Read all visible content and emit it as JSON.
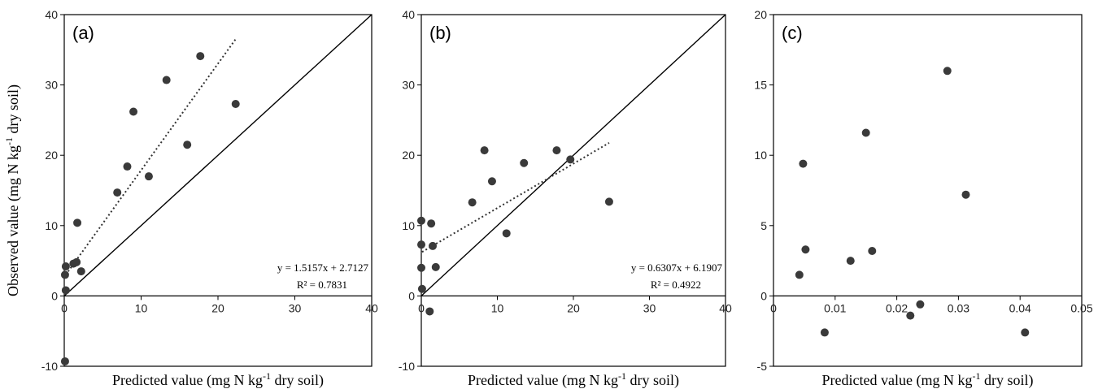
{
  "chart_data": [
    {
      "type": "scatter",
      "panel_label": "(a)",
      "xlim": [
        0,
        40
      ],
      "ylim": [
        -10,
        40
      ],
      "xticks": [
        0,
        10,
        20,
        30,
        40
      ],
      "yticks": [
        -10,
        0,
        10,
        20,
        30,
        40
      ],
      "xlabel": "Predicted value (mg N kg-1 dry soil)",
      "ylabel": "Observed value (mg N kg-1 dry soil)",
      "one_to_one_line": true,
      "trendline": {
        "slope": 1.5157,
        "intercept": 2.7127,
        "x_range": [
          0.5,
          22.3
        ]
      },
      "equation": "y = 1.5157x + 2.7127",
      "r2": "R² = 0.7831",
      "points": [
        {
          "x": 0.1,
          "y": -9.3
        },
        {
          "x": 0.2,
          "y": 0.8
        },
        {
          "x": 0.1,
          "y": 3.0
        },
        {
          "x": 0.2,
          "y": 4.2
        },
        {
          "x": 1.2,
          "y": 4.6
        },
        {
          "x": 1.6,
          "y": 4.8
        },
        {
          "x": 2.2,
          "y": 3.5
        },
        {
          "x": 1.7,
          "y": 10.4
        },
        {
          "x": 6.9,
          "y": 14.7
        },
        {
          "x": 8.2,
          "y": 18.4
        },
        {
          "x": 9.0,
          "y": 26.2
        },
        {
          "x": 11.0,
          "y": 17.0
        },
        {
          "x": 13.3,
          "y": 30.7
        },
        {
          "x": 16.0,
          "y": 21.5
        },
        {
          "x": 17.7,
          "y": 34.1
        },
        {
          "x": 22.3,
          "y": 27.3
        }
      ]
    },
    {
      "type": "scatter",
      "panel_label": "(b)",
      "xlim": [
        0,
        40
      ],
      "ylim": [
        -10,
        40
      ],
      "xticks": [
        0,
        10,
        20,
        30,
        40
      ],
      "yticks": [
        -10,
        0,
        10,
        20,
        30,
        40
      ],
      "xlabel": "Predicted value (mg N kg-1 dry soil)",
      "ylabel": "",
      "one_to_one_line": true,
      "trendline": {
        "slope": 0.6307,
        "intercept": 6.1907,
        "x_range": [
          0.1,
          24.7
        ]
      },
      "equation": "y = 0.6307x + 6.1907",
      "r2": "R² = 0.4922",
      "points": [
        {
          "x": 0.0,
          "y": 10.7
        },
        {
          "x": 0.0,
          "y": 7.3
        },
        {
          "x": 0.0,
          "y": 4.0
        },
        {
          "x": 0.1,
          "y": 1.0
        },
        {
          "x": 1.3,
          "y": 10.3
        },
        {
          "x": 1.5,
          "y": 7.1
        },
        {
          "x": 1.9,
          "y": 4.1
        },
        {
          "x": 1.1,
          "y": -2.2
        },
        {
          "x": 6.7,
          "y": 13.3
        },
        {
          "x": 8.3,
          "y": 20.7
        },
        {
          "x": 9.3,
          "y": 16.3
        },
        {
          "x": 11.2,
          "y": 8.9
        },
        {
          "x": 13.5,
          "y": 18.9
        },
        {
          "x": 17.8,
          "y": 20.7
        },
        {
          "x": 19.6,
          "y": 19.4
        },
        {
          "x": 24.7,
          "y": 13.4
        }
      ]
    },
    {
      "type": "scatter",
      "panel_label": "(c)",
      "xlim": [
        0,
        0.05
      ],
      "ylim": [
        -5,
        20
      ],
      "xticks": [
        "0",
        "0.01",
        "0.02",
        "0.03",
        "0.04",
        "0.05"
      ],
      "xtick_values": [
        0,
        0.01,
        0.02,
        0.03,
        0.04,
        0.05
      ],
      "yticks": [
        -5,
        0,
        5,
        10,
        15,
        20
      ],
      "xlabel": "Predicted value (mg N kg-1 dry soil)",
      "ylabel": "",
      "one_to_one_line": false,
      "points": [
        {
          "x": 0.0042,
          "y": 1.5
        },
        {
          "x": 0.0048,
          "y": 9.4
        },
        {
          "x": 0.0052,
          "y": 3.3
        },
        {
          "x": 0.0083,
          "y": -2.6
        },
        {
          "x": 0.0125,
          "y": 2.5
        },
        {
          "x": 0.015,
          "y": 11.6
        },
        {
          "x": 0.016,
          "y": 3.2
        },
        {
          "x": 0.0222,
          "y": -1.4
        },
        {
          "x": 0.0238,
          "y": -0.6
        },
        {
          "x": 0.0282,
          "y": 16.0
        },
        {
          "x": 0.0312,
          "y": 7.2
        },
        {
          "x": 0.0408,
          "y": -2.6
        }
      ]
    }
  ]
}
